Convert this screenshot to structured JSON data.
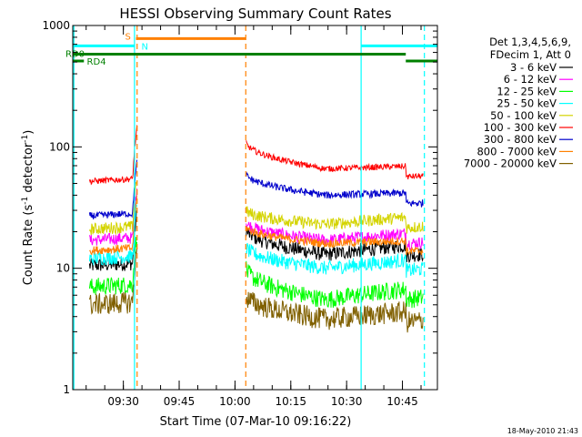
{
  "chart_data": {
    "type": "line",
    "title": "HESSI Observing Summary Count Rates",
    "xlabel": "Start Time (07-Mar-10 09:16:22)",
    "ylabel": {
      "main": "Count Rate (s",
      "sup1": "-1",
      "mid": " detector",
      "sup2": "-1",
      "end": ")"
    },
    "y_scale": "log",
    "ylim": [
      1,
      1000
    ],
    "xlim_minutes": [
      0,
      98
    ],
    "x_ticks": [
      {
        "label": "09:30",
        "t": 13.6
      },
      {
        "label": "09:45",
        "t": 28.6
      },
      {
        "label": "10:00",
        "t": 43.6
      },
      {
        "label": "10:15",
        "t": 58.6
      },
      {
        "label": "10:30",
        "t": 73.6
      },
      {
        "label": "10:45",
        "t": 88.6
      }
    ],
    "y_ticks": [
      {
        "label": "1",
        "v": 1
      },
      {
        "label": "10",
        "v": 10
      },
      {
        "label": "100",
        "v": 100
      },
      {
        "label": "1000",
        "v": 1000
      }
    ],
    "legend": {
      "header1": "Det 1,3,4,5,6,9,",
      "header2": "FDecim 1, Att 0",
      "placement": "right"
    },
    "timestamp": "18-May-2010 21:43",
    "flags": [
      {
        "label": "S",
        "color": "#ff8000",
        "level": 780,
        "segments": [
          [
            17,
            46.5
          ]
        ]
      },
      {
        "label": "N",
        "color": "#00ffff",
        "level": 680,
        "segments": [
          [
            0,
            16.5
          ],
          [
            77.5,
            98
          ]
        ]
      },
      {
        "label": "RD0",
        "color": "#008000",
        "level": 580,
        "segments": [
          [
            0,
            89.5
          ]
        ]
      },
      {
        "label": "RD4",
        "color": "#008000",
        "level": 510,
        "segments": [
          [
            0,
            3
          ],
          [
            89.5,
            98
          ]
        ]
      }
    ],
    "vlines": [
      {
        "t": 0.3,
        "color": "#00ffff",
        "dash": false
      },
      {
        "t": 16.6,
        "color": "#00ffff",
        "dash": false
      },
      {
        "t": 17.3,
        "color": "#ff8000",
        "dash": true
      },
      {
        "t": 46.5,
        "color": "#ff8000",
        "dash": true
      },
      {
        "t": 77.5,
        "color": "#00ffff",
        "dash": false
      },
      {
        "t": 94.5,
        "color": "#00ffff",
        "dash": true
      }
    ],
    "segments": [
      [
        4.5,
        17.3
      ],
      [
        46.6,
        94.2
      ]
    ],
    "series": [
      {
        "name": "3 - 6 keV",
        "color": "#000000",
        "pre": 10.5,
        "post_start": 21,
        "post_min": 13,
        "post_end": 16,
        "noise": 0.12
      },
      {
        "name": "6 - 12 keV",
        "color": "#ff00ff",
        "pre": 17,
        "post_start": 24,
        "post_min": 17,
        "post_end": 20,
        "noise": 0.1
      },
      {
        "name": "12 - 25 keV",
        "color": "#00ff00",
        "pre": 7,
        "post_start": 10,
        "post_min": 5.5,
        "post_end": 7,
        "noise": 0.15
      },
      {
        "name": "25 - 50 keV",
        "color": "#00ffff",
        "pre": 12,
        "post_start": 15,
        "post_min": 10,
        "post_end": 12,
        "noise": 0.12
      },
      {
        "name": "50 - 100 keV",
        "color": "#d4d400",
        "pre": 21,
        "post_start": 30,
        "post_min": 23,
        "post_end": 27,
        "noise": 0.1
      },
      {
        "name": "100 - 300 keV",
        "color": "#ff0000",
        "pre": 52,
        "post_start": 110,
        "post_min": 66,
        "post_end": 70,
        "noise": 0.05
      },
      {
        "name": "300 - 800 keV",
        "color": "#0000cc",
        "pre": 27,
        "post_start": 60,
        "post_min": 40,
        "post_end": 42,
        "noise": 0.06
      },
      {
        "name": "800 - 7000 keV",
        "color": "#ff8000",
        "pre": 14,
        "post_start": 22,
        "post_min": 16,
        "post_end": 17,
        "noise": 0.07
      },
      {
        "name": "7000 - 20000 keV",
        "color": "#806000",
        "pre": 5,
        "post_start": 6,
        "post_min": 3.8,
        "post_end": 4.5,
        "noise": 0.18
      }
    ]
  }
}
